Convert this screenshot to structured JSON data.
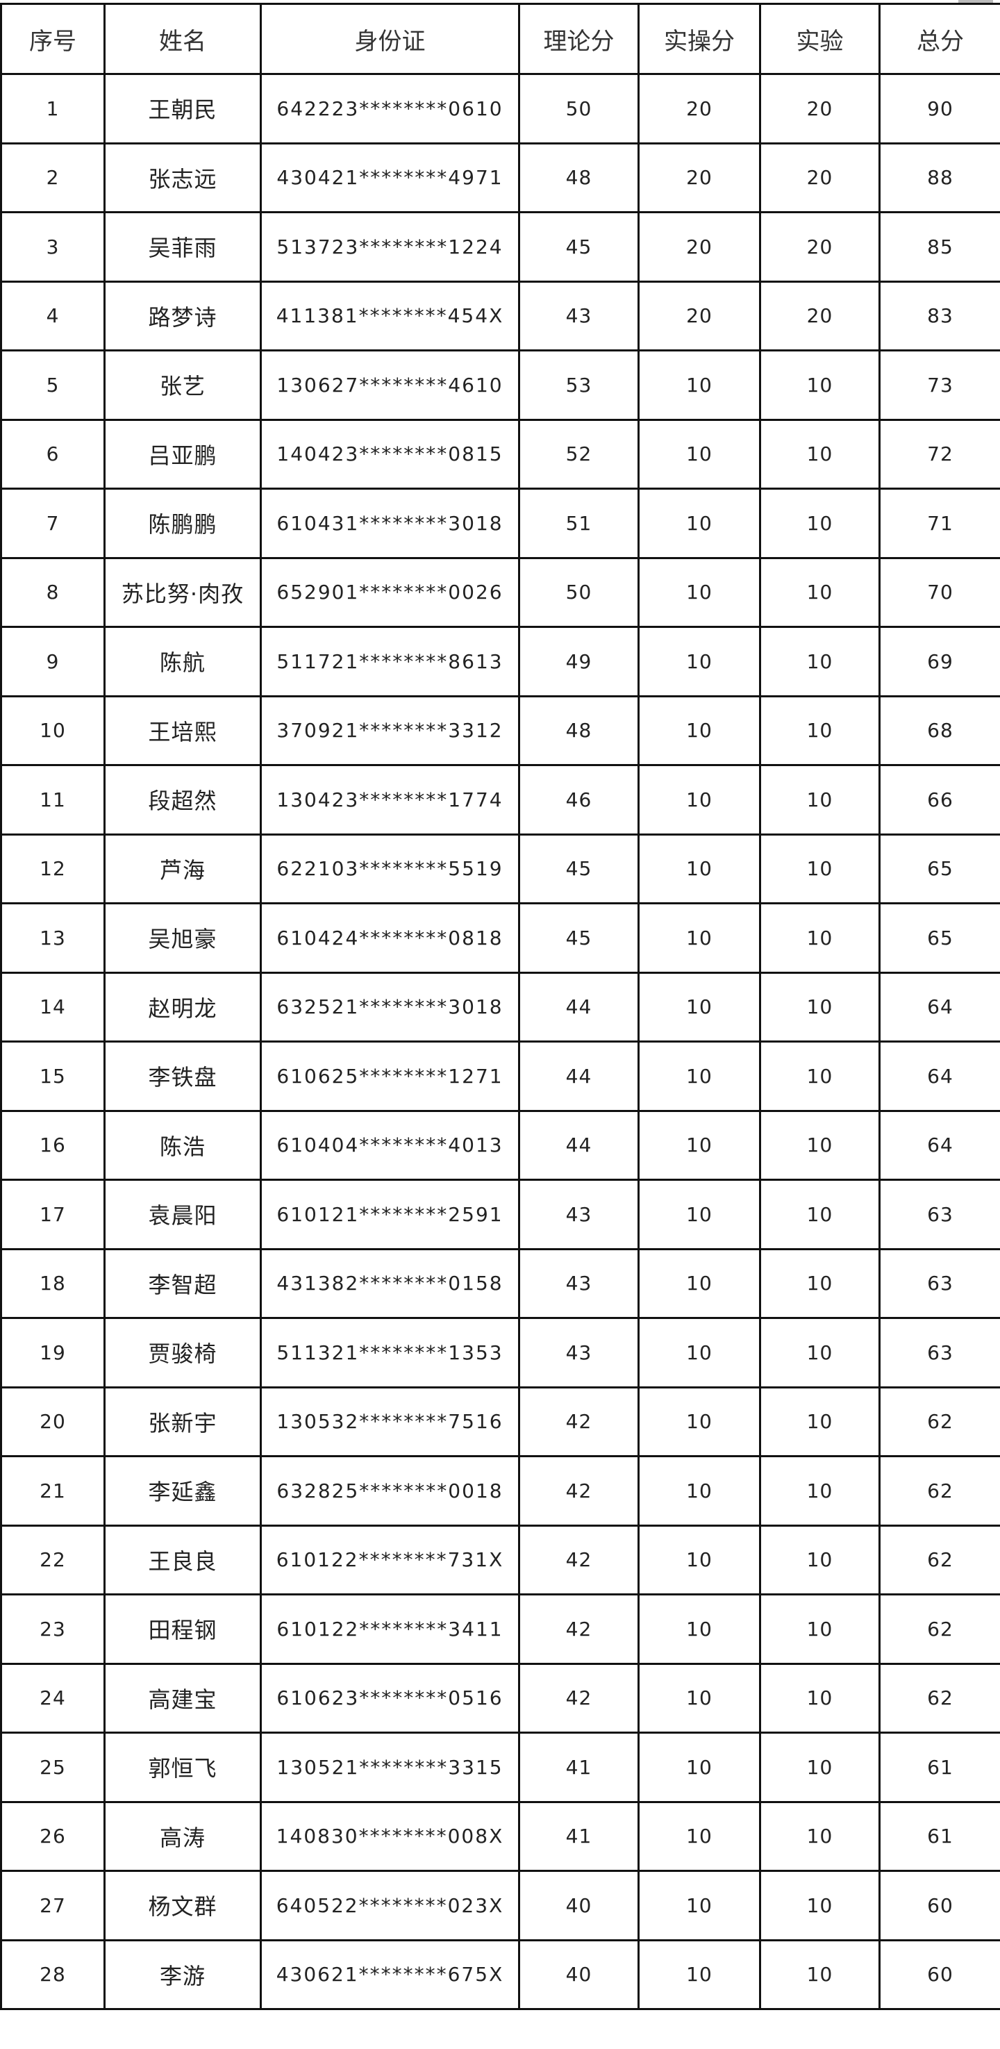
{
  "headers": [
    "序号",
    "姓名",
    "身份证",
    "理论分",
    "实操分",
    "实验",
    "总分"
  ],
  "rows": [
    [
      "1",
      "王朝民",
      "642223********0610",
      "50",
      "20",
      "20",
      "90"
    ],
    [
      "2",
      "张志远",
      "430421********4971",
      "48",
      "20",
      "20",
      "88"
    ],
    [
      "3",
      "吴菲雨",
      "513723********1224",
      "45",
      "20",
      "20",
      "85"
    ],
    [
      "4",
      "路梦诗",
      "411381********454X",
      "43",
      "20",
      "20",
      "83"
    ],
    [
      "5",
      "张艺",
      "130627********4610",
      "53",
      "10",
      "10",
      "73"
    ],
    [
      "6",
      "吕亚鹏",
      "140423********0815",
      "52",
      "10",
      "10",
      "72"
    ],
    [
      "7",
      "陈鹏鹏",
      "610431********3018",
      "51",
      "10",
      "10",
      "71"
    ],
    [
      "8",
      "苏比努·肉孜",
      "652901********0026",
      "50",
      "10",
      "10",
      "70"
    ],
    [
      "9",
      "陈航",
      "511721********8613",
      "49",
      "10",
      "10",
      "69"
    ],
    [
      "10",
      "王培熙",
      "370921********3312",
      "48",
      "10",
      "10",
      "68"
    ],
    [
      "11",
      "段超然",
      "130423********1774",
      "46",
      "10",
      "10",
      "66"
    ],
    [
      "12",
      "芦海",
      "622103********5519",
      "45",
      "10",
      "10",
      "65"
    ],
    [
      "13",
      "吴旭豪",
      "610424********0818",
      "45",
      "10",
      "10",
      "65"
    ],
    [
      "14",
      "赵明龙",
      "632521********3018",
      "44",
      "10",
      "10",
      "64"
    ],
    [
      "15",
      "李铁盘",
      "610625********1271",
      "44",
      "10",
      "10",
      "64"
    ],
    [
      "16",
      "陈浩",
      "610404********4013",
      "44",
      "10",
      "10",
      "64"
    ],
    [
      "17",
      "袁晨阳",
      "610121********2591",
      "43",
      "10",
      "10",
      "63"
    ],
    [
      "18",
      "李智超",
      "431382********0158",
      "43",
      "10",
      "10",
      "63"
    ],
    [
      "19",
      "贾骏椅",
      "511321********1353",
      "43",
      "10",
      "10",
      "63"
    ],
    [
      "20",
      "张新宇",
      "130532********7516",
      "42",
      "10",
      "10",
      "62"
    ],
    [
      "21",
      "李延鑫",
      "632825********0018",
      "42",
      "10",
      "10",
      "62"
    ],
    [
      "22",
      "王良良",
      "610122********731X",
      "42",
      "10",
      "10",
      "62"
    ],
    [
      "23",
      "田程钢",
      "610122********3411",
      "42",
      "10",
      "10",
      "62"
    ],
    [
      "24",
      "高建宝",
      "610623********0516",
      "42",
      "10",
      "10",
      "62"
    ],
    [
      "25",
      "郭恒飞",
      "130521********3315",
      "41",
      "10",
      "10",
      "61"
    ],
    [
      "26",
      "高涛",
      "140830********008X",
      "41",
      "10",
      "10",
      "61"
    ],
    [
      "27",
      "杨文群",
      "640522********023X",
      "40",
      "10",
      "10",
      "60"
    ],
    [
      "28",
      "李游",
      "430621********675X",
      "40",
      "10",
      "10",
      "60"
    ]
  ]
}
